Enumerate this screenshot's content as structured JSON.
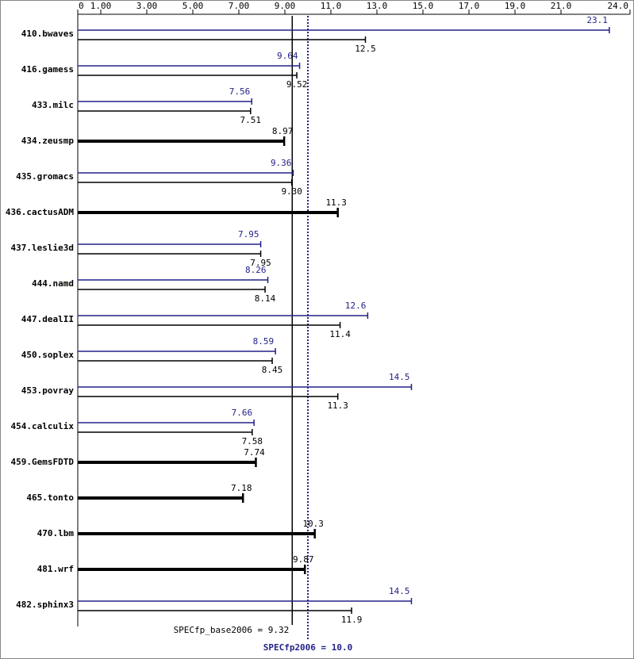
{
  "chart_data": {
    "type": "bar",
    "categories": [
      "410.bwaves",
      "416.gamess",
      "433.milc",
      "434.zeusmp",
      "435.gromacs",
      "436.cactusADM",
      "437.leslie3d",
      "444.namd",
      "447.dealII",
      "450.soplex",
      "453.povray",
      "454.calculix",
      "459.GemsFDTD",
      "465.tonto",
      "470.lbm",
      "481.wrf",
      "482.sphinx3"
    ],
    "series": [
      {
        "color": "#222288",
        "values": [
          23.1,
          9.64,
          7.56,
          null,
          9.36,
          null,
          7.95,
          8.26,
          12.6,
          8.59,
          14.5,
          7.66,
          null,
          null,
          null,
          null,
          14.5
        ],
        "value_labels": [
          "23.1",
          "9.64",
          "7.56",
          null,
          "9.36",
          null,
          "7.95",
          "8.26",
          "12.6",
          "8.59",
          "14.5",
          "7.66",
          null,
          null,
          null,
          null,
          "14.5"
        ]
      },
      {
        "color": "#000000",
        "values": [
          12.5,
          9.52,
          7.51,
          8.97,
          9.3,
          11.3,
          7.95,
          8.14,
          11.4,
          8.45,
          11.3,
          7.58,
          7.74,
          7.18,
          10.3,
          9.87,
          11.9
        ],
        "value_labels": [
          "12.5",
          "9.52",
          "7.51",
          "8.97",
          "9.30",
          "11.3",
          "7.95",
          "8.14",
          "11.4",
          "8.45",
          "11.3",
          "7.58",
          "7.74",
          "7.18",
          "10.3",
          "9.87",
          "11.9"
        ]
      }
    ],
    "xlim": [
      0,
      24
    ],
    "xticks": [
      0,
      {
        "value": 1,
        "label": "1.00"
      },
      {
        "value": 3,
        "label": "3.00"
      },
      {
        "value": 5,
        "label": "5.00"
      },
      {
        "value": 7,
        "label": "7.00"
      },
      {
        "value": 9,
        "label": "9.00"
      },
      {
        "value": 11,
        "label": "11.0"
      },
      {
        "value": 13,
        "label": "13.0"
      },
      {
        "value": 15,
        "label": "15.0"
      },
      {
        "value": 17,
        "label": "17.0"
      },
      {
        "value": 19,
        "label": "19.0"
      },
      {
        "value": 21,
        "label": "21.0"
      },
      {
        "value": 24,
        "label": "24.0"
      }
    ],
    "reference_lines": [
      {
        "label": "SPECfp_base2006 = 9.32",
        "value": 9.32,
        "color": "#000000",
        "style": "solid"
      },
      {
        "label": "SPECfp2006 = 10.0",
        "value": 10.0,
        "color": "#222288",
        "style": "dotted"
      }
    ]
  }
}
